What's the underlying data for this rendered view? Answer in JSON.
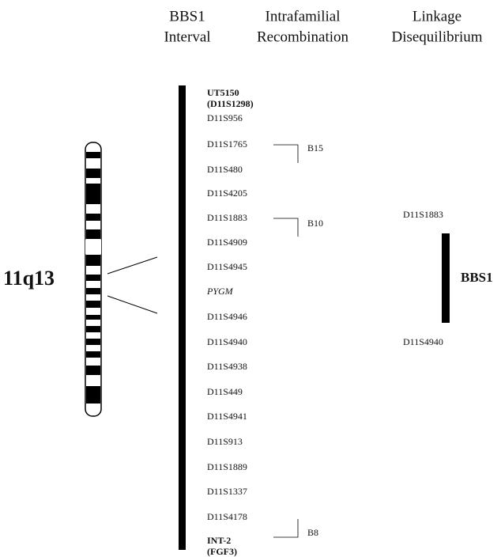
{
  "headers": [
    {
      "lines": [
        "BBS1",
        "Interval"
      ]
    },
    {
      "lines": [
        "Intrafamilial",
        "Recombination"
      ]
    },
    {
      "lines": [
        "Linkage",
        "Disequilibrium"
      ]
    }
  ],
  "chromosome_label": "11q13",
  "markers": [
    {
      "lines": [
        "UT5150",
        "(D11S1298)"
      ],
      "style": "bold"
    },
    {
      "lines": [
        "D11S956"
      ],
      "style": "normal"
    },
    {
      "lines": [
        "D11S1765"
      ],
      "style": "normal"
    },
    {
      "lines": [
        "D11S480"
      ],
      "style": "normal"
    },
    {
      "lines": [
        "D11S4205"
      ],
      "style": "normal"
    },
    {
      "lines": [
        "D11S1883"
      ],
      "style": "normal"
    },
    {
      "lines": [
        "D11S4909"
      ],
      "style": "normal"
    },
    {
      "lines": [
        "D11S4945"
      ],
      "style": "normal"
    },
    {
      "lines": [
        "PYGM"
      ],
      "style": "italic"
    },
    {
      "lines": [
        "D11S4946"
      ],
      "style": "normal"
    },
    {
      "lines": [
        "D11S4940"
      ],
      "style": "normal"
    },
    {
      "lines": [
        "D11S4938"
      ],
      "style": "normal"
    },
    {
      "lines": [
        "D11S449"
      ],
      "style": "normal"
    },
    {
      "lines": [
        "D11S4941"
      ],
      "style": "normal"
    },
    {
      "lines": [
        "D11S913"
      ],
      "style": "normal"
    },
    {
      "lines": [
        "D11S1889"
      ],
      "style": "normal"
    },
    {
      "lines": [
        "D11S1337"
      ],
      "style": "normal"
    },
    {
      "lines": [
        "D11S4178"
      ],
      "style": "normal"
    },
    {
      "lines": [
        "INT-2",
        "(FGF3)"
      ],
      "style": "bold"
    }
  ],
  "recombinations": [
    "B15",
    "B10",
    "B8"
  ],
  "linkage": {
    "upper": "D11S1883",
    "lower": "D11S4940",
    "gene": "BBS1"
  }
}
